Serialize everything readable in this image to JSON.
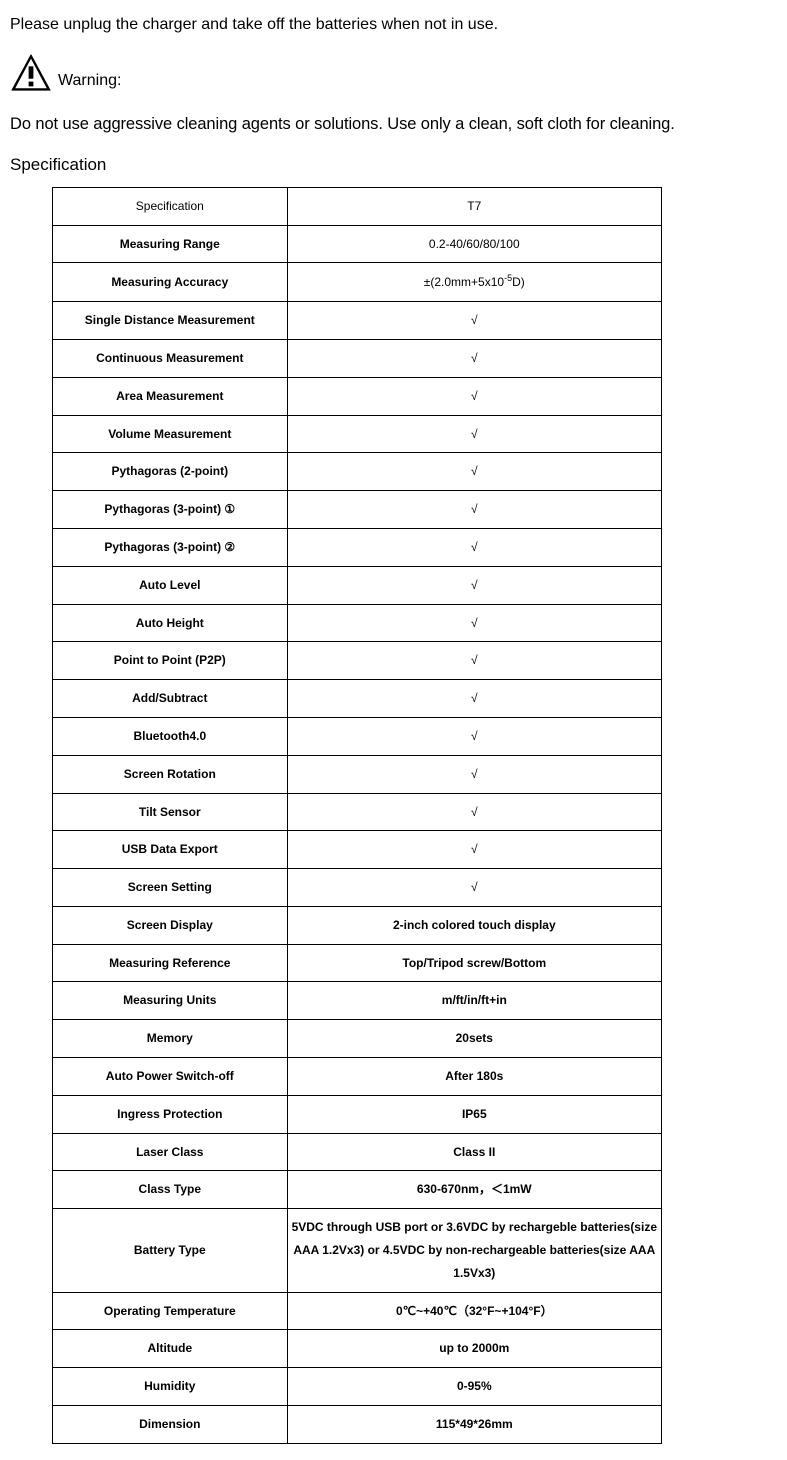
{
  "intro": "Please unplug the charger and take off the batteries when not in use.",
  "warning": {
    "label": "Warning:"
  },
  "cleaning": "Do not use aggressive cleaning agents or solutions. Use only a clean, soft cloth for cleaning.",
  "heading": "Specification",
  "table": {
    "header": {
      "left": "Specification",
      "right": "T7"
    },
    "rows": [
      {
        "left": "Measuring Range",
        "right": "0.2-40/60/80/100",
        "bold_right": false
      },
      {
        "left": "Measuring Accuracy",
        "right": "±(2.0mm+5x10⁻⁵D)",
        "bold_right": false,
        "sup": true
      },
      {
        "left": "Single Distance Measurement",
        "right": "√",
        "bold_right": false
      },
      {
        "left": "Continuous Measurement",
        "right": "√",
        "bold_right": false
      },
      {
        "left": "Area Measurement",
        "right": "√",
        "bold_right": false
      },
      {
        "left": "Volume Measurement",
        "right": "√",
        "bold_right": false
      },
      {
        "left": "Pythagoras (2-point)",
        "right": "√",
        "bold_right": false
      },
      {
        "left": "Pythagoras (3-point) ①",
        "right": "√",
        "bold_right": false
      },
      {
        "left": "Pythagoras (3-point) ②",
        "right": "√",
        "bold_right": false
      },
      {
        "left": "Auto Level",
        "right": "√",
        "bold_right": false
      },
      {
        "left": "Auto Height",
        "right": "√",
        "bold_right": false
      },
      {
        "left": "Point to Point (P2P)",
        "right": "√",
        "bold_right": false
      },
      {
        "left": "Add/Subtract",
        "right": "√",
        "bold_right": false
      },
      {
        "left": "Bluetooth4.0",
        "right": "√",
        "bold_right": false
      },
      {
        "left": "Screen Rotation",
        "right": "√",
        "bold_right": false
      },
      {
        "left": "Tilt Sensor",
        "right": "√",
        "bold_right": false
      },
      {
        "left": "USB Data Export",
        "right": "√",
        "bold_right": false
      },
      {
        "left": "Screen Setting",
        "right": "√",
        "bold_right": false
      },
      {
        "left": "Screen Display",
        "right": "2-inch colored touch display",
        "bold_right": true
      },
      {
        "left": "Measuring Reference",
        "right": "Top/Tripod screw/Bottom",
        "bold_right": true
      },
      {
        "left": "Measuring Units",
        "right": "m/ft/in/ft+in",
        "bold_right": true
      },
      {
        "left": "Memory",
        "right": "20sets",
        "bold_right": true
      },
      {
        "left": "Auto Power Switch-off",
        "right": "After 180s",
        "bold_right": true
      },
      {
        "left": "Ingress Protection",
        "right": "IP65",
        "bold_right": true
      },
      {
        "left": "Laser Class",
        "right": "Class II",
        "bold_right": true
      },
      {
        "left": "Class Type",
        "right": "630-670nm，＜1mW",
        "bold_right": true
      },
      {
        "left": "Battery Type",
        "right": "5VDC through USB port or 3.6VDC by rechargeble batteries(size AAA 1.2Vx3) or 4.5VDC by non-rechargeable batteries(size AAA 1.5Vx3)",
        "bold_right": true
      },
      {
        "left": "Operating Temperature",
        "right": "0℃~+40℃（32°F~+104°F）",
        "bold_right": true
      },
      {
        "left": "Altitude",
        "right": "up to 2000m",
        "bold_right": true
      },
      {
        "left": "Humidity",
        "right": "0-95%",
        "bold_right": true
      },
      {
        "left": "Dimension",
        "right": "115*49*26mm",
        "bold_right": true
      }
    ]
  }
}
